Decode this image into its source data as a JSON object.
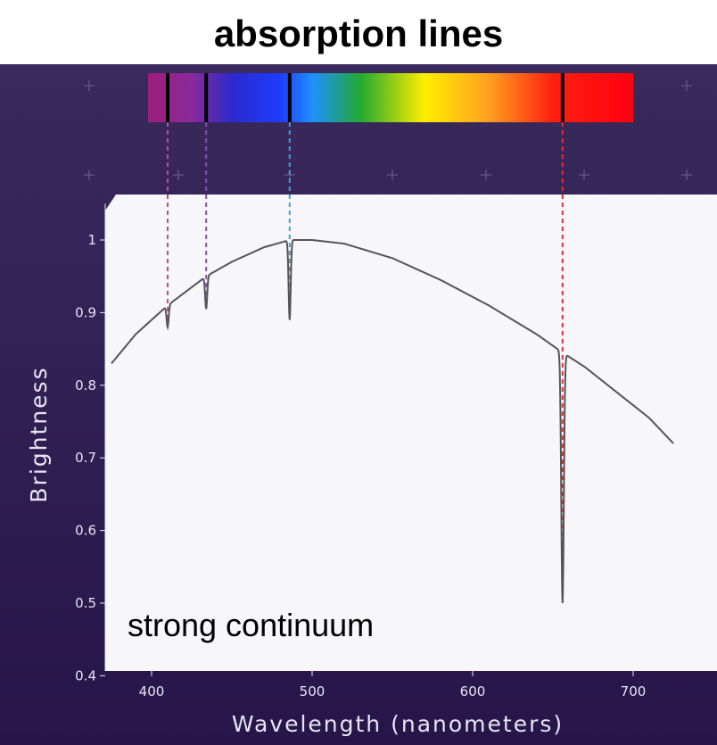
{
  "title": "absorption lines",
  "colors": {
    "background_top": "#3a2a5c",
    "background_bottom": "#27154a",
    "plot_area": "#f7f7fb",
    "curve": "#555555",
    "text": "#e8e4f4"
  },
  "chart_data": {
    "type": "line",
    "title": "absorption lines",
    "xlabel": "Wavelength (nanometers)",
    "ylabel": "Brightness",
    "xlim": [
      375,
      725
    ],
    "ylim": [
      0.4,
      1.05
    ],
    "x_ticks": [
      400,
      500,
      600,
      700
    ],
    "y_ticks": [
      0.4,
      0.5,
      0.6,
      0.7,
      0.8,
      0.9,
      1
    ],
    "y_tick_labels": [
      "0.4",
      "0.5",
      "0.6",
      "0.7",
      "0.8",
      "0.9",
      "1"
    ],
    "grid": false,
    "annotation": "strong continuum",
    "continuum": {
      "x": [
        375,
        390,
        410,
        434,
        450,
        470,
        486,
        500,
        520,
        550,
        580,
        610,
        640,
        656,
        670,
        690,
        710,
        725
      ],
      "y": [
        0.83,
        0.87,
        0.91,
        0.95,
        0.97,
        0.99,
        1.0,
        1.0,
        0.995,
        0.975,
        0.945,
        0.91,
        0.87,
        0.845,
        0.825,
        0.79,
        0.755,
        0.72
      ]
    },
    "absorption_lines": [
      {
        "wavelength": 410,
        "min_brightness": 0.88,
        "color": "#c04a9a"
      },
      {
        "wavelength": 434,
        "min_brightness": 0.905,
        "color": "#8a4ab8"
      },
      {
        "wavelength": 486,
        "min_brightness": 0.89,
        "color": "#4a9ad8"
      },
      {
        "wavelength": 656,
        "min_brightness": 0.5,
        "color": "#e03030"
      }
    ],
    "spectrum_bar": {
      "range_nm": [
        400,
        700
      ],
      "stops": [
        {
          "nm": 400,
          "color": "#9b1f7e"
        },
        {
          "nm": 425,
          "color": "#8a2a9a"
        },
        {
          "nm": 450,
          "color": "#2a2acc"
        },
        {
          "nm": 480,
          "color": "#1e3cff"
        },
        {
          "nm": 500,
          "color": "#1e90ff"
        },
        {
          "nm": 530,
          "color": "#22a830"
        },
        {
          "nm": 570,
          "color": "#ffee00"
        },
        {
          "nm": 610,
          "color": "#ffa020"
        },
        {
          "nm": 650,
          "color": "#ff2010"
        },
        {
          "nm": 700,
          "color": "#ff0010"
        }
      ]
    }
  }
}
